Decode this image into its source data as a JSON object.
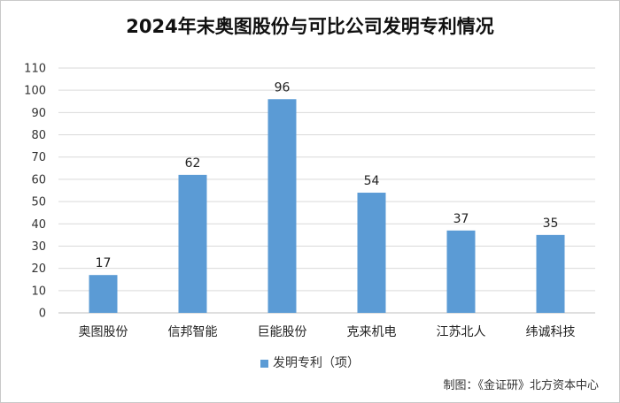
{
  "chart_data": {
    "type": "bar",
    "title": "2024年末奥图股份与可比公司发明专利情况",
    "categories": [
      "奥图股份",
      "信邦智能",
      "巨能股份",
      "克来机电",
      "江苏北人",
      "纬诚科技"
    ],
    "series": [
      {
        "name": "发明专利（项）",
        "values": [
          17,
          62,
          96,
          54,
          37,
          35
        ]
      }
    ],
    "xlabel": "",
    "ylabel": "",
    "ylim": [
      0,
      110
    ],
    "yticks": [
      0,
      10,
      20,
      30,
      40,
      50,
      60,
      70,
      80,
      90,
      100,
      110
    ],
    "grid": true,
    "legend_position": "bottom",
    "bar_color": "#5b9bd5",
    "source": "制图：《金证研》北方资本中心"
  }
}
